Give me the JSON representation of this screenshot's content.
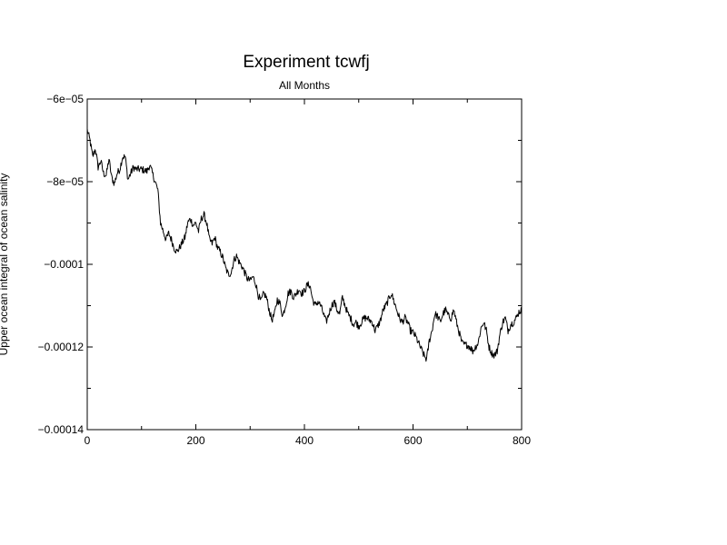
{
  "chart_data": {
    "type": "line",
    "title": "Experiment tcwfj",
    "subtitle": "All Months",
    "xlabel": "",
    "ylabel": "Upper ocean integral of ocean salinity",
    "xlim": [
      0,
      800
    ],
    "ylim": [
      -0.00014,
      -6e-05
    ],
    "xticks": [
      0,
      200,
      400,
      600,
      800
    ],
    "xtick_labels": [
      "0",
      "200",
      "400",
      "600",
      "800"
    ],
    "yticks": [
      -0.00014,
      -0.00012,
      -0.0001,
      -8e-05,
      -6e-05
    ],
    "ytick_labels": [
      "−0.00014",
      "−0.00012",
      "−0.0001",
      "−8e−05",
      "−6e−05"
    ],
    "grid": false,
    "line_color": "#000000",
    "anchors": [
      [
        0,
        -6.75e-05
      ],
      [
        5,
        -7e-05
      ],
      [
        10,
        -7.4e-05
      ],
      [
        15,
        -7.2e-05
      ],
      [
        20,
        -7.65e-05
      ],
      [
        25,
        -7.5e-05
      ],
      [
        30,
        -7.8e-05
      ],
      [
        35,
        -7.85e-05
      ],
      [
        40,
        -7.45e-05
      ],
      [
        45,
        -7.9e-05
      ],
      [
        50,
        -8.05e-05
      ],
      [
        55,
        -7.8e-05
      ],
      [
        60,
        -7.7e-05
      ],
      [
        65,
        -7.4e-05
      ],
      [
        70,
        -7.4e-05
      ],
      [
        75,
        -7.95e-05
      ],
      [
        80,
        -7.8e-05
      ],
      [
        85,
        -7.65e-05
      ],
      [
        90,
        -7.7e-05
      ],
      [
        100,
        -7.7e-05
      ],
      [
        110,
        -7.75e-05
      ],
      [
        115,
        -7.6e-05
      ],
      [
        120,
        -7.8e-05
      ],
      [
        125,
        -8e-05
      ],
      [
        130,
        -8.2e-05
      ],
      [
        135,
        -9e-05
      ],
      [
        140,
        -9.2e-05
      ],
      [
        145,
        -9.4e-05
      ],
      [
        150,
        -9.25e-05
      ],
      [
        155,
        -9.4e-05
      ],
      [
        160,
        -9.6e-05
      ],
      [
        165,
        -9.7e-05
      ],
      [
        170,
        -9.6e-05
      ],
      [
        180,
        -9.35e-05
      ],
      [
        185,
        -9e-05
      ],
      [
        190,
        -8.9e-05
      ],
      [
        195,
        -9.05e-05
      ],
      [
        200,
        -9e-05
      ],
      [
        205,
        -9.2e-05
      ],
      [
        210,
        -8.9e-05
      ],
      [
        215,
        -8.8e-05
      ],
      [
        220,
        -9e-05
      ],
      [
        225,
        -9.4e-05
      ],
      [
        230,
        -9.5e-05
      ],
      [
        235,
        -9.35e-05
      ],
      [
        240,
        -9.6e-05
      ],
      [
        245,
        -9.7e-05
      ],
      [
        250,
        -9.85e-05
      ],
      [
        255,
        -0.000101
      ],
      [
        260,
        -0.0001025
      ],
      [
        265,
        -0.000102
      ],
      [
        270,
        -9.9e-05
      ],
      [
        275,
        -9.8e-05
      ],
      [
        280,
        -9.95e-05
      ],
      [
        285,
        -0.0001005
      ],
      [
        290,
        -0.000102
      ],
      [
        295,
        -0.0001035
      ],
      [
        300,
        -0.000104
      ],
      [
        305,
        -0.000103
      ],
      [
        310,
        -0.0001045
      ],
      [
        315,
        -0.0001075
      ],
      [
        320,
        -0.000109
      ],
      [
        325,
        -0.000107
      ],
      [
        330,
        -0.000108
      ],
      [
        335,
        -0.000111
      ],
      [
        340,
        -0.0001135
      ],
      [
        345,
        -0.000112
      ],
      [
        350,
        -0.0001085
      ],
      [
        355,
        -0.0001095
      ],
      [
        360,
        -0.0001125
      ],
      [
        365,
        -0.00011
      ],
      [
        370,
        -0.000107
      ],
      [
        375,
        -0.0001065
      ],
      [
        380,
        -0.000108
      ],
      [
        385,
        -0.000107
      ],
      [
        390,
        -0.000106
      ],
      [
        395,
        -0.000107
      ],
      [
        400,
        -0.0001065
      ],
      [
        405,
        -0.000105
      ],
      [
        410,
        -0.000105
      ],
      [
        415,
        -0.0001085
      ],
      [
        420,
        -0.00011
      ],
      [
        425,
        -0.000109
      ],
      [
        430,
        -0.00011
      ],
      [
        435,
        -0.000112
      ],
      [
        440,
        -0.000114
      ],
      [
        445,
        -0.000112
      ],
      [
        450,
        -0.00011
      ],
      [
        455,
        -0.000109
      ],
      [
        460,
        -0.000111
      ],
      [
        465,
        -0.000112
      ],
      [
        470,
        -0.000108
      ],
      [
        475,
        -0.00011
      ],
      [
        480,
        -0.000112
      ],
      [
        485,
        -0.000113
      ],
      [
        490,
        -0.0001145
      ],
      [
        495,
        -0.000114
      ],
      [
        500,
        -0.000115
      ],
      [
        505,
        -0.000114
      ],
      [
        510,
        -0.000113
      ],
      [
        515,
        -0.000113
      ],
      [
        520,
        -0.0001135
      ],
      [
        525,
        -0.000114
      ],
      [
        530,
        -0.000116
      ],
      [
        535,
        -0.000115
      ],
      [
        540,
        -0.0001135
      ],
      [
        545,
        -0.000111
      ],
      [
        550,
        -0.00011
      ],
      [
        555,
        -0.0001085
      ],
      [
        560,
        -0.000107
      ],
      [
        565,
        -0.000109
      ],
      [
        570,
        -0.000111
      ],
      [
        575,
        -0.000113
      ],
      [
        580,
        -0.000114
      ],
      [
        585,
        -0.000113
      ],
      [
        590,
        -0.000114
      ],
      [
        595,
        -0.000116
      ],
      [
        600,
        -0.0001165
      ],
      [
        605,
        -0.0001175
      ],
      [
        610,
        -0.000119
      ],
      [
        615,
        -0.0001205
      ],
      [
        620,
        -0.000122
      ],
      [
        625,
        -0.000123
      ],
      [
        630,
        -0.0001185
      ],
      [
        635,
        -0.000116
      ],
      [
        640,
        -0.000112
      ],
      [
        645,
        -0.0001125
      ],
      [
        650,
        -0.000114
      ],
      [
        655,
        -0.000112
      ],
      [
        660,
        -0.000111
      ],
      [
        665,
        -0.0001125
      ],
      [
        670,
        -0.000113
      ],
      [
        675,
        -0.000111
      ],
      [
        680,
        -0.000114
      ],
      [
        685,
        -0.0001165
      ],
      [
        690,
        -0.000119
      ],
      [
        695,
        -0.0001195
      ],
      [
        700,
        -0.0001195
      ],
      [
        705,
        -0.00012
      ],
      [
        710,
        -0.000121
      ],
      [
        715,
        -0.00012
      ],
      [
        720,
        -0.000119
      ],
      [
        725,
        -0.0001155
      ],
      [
        730,
        -0.000114
      ],
      [
        735,
        -0.000116
      ],
      [
        740,
        -0.00012
      ],
      [
        745,
        -0.0001215
      ],
      [
        750,
        -0.000122
      ],
      [
        755,
        -0.000121
      ],
      [
        760,
        -0.000117
      ],
      [
        765,
        -0.000114
      ],
      [
        770,
        -0.000113
      ],
      [
        775,
        -0.000116
      ],
      [
        780,
        -0.0001145
      ],
      [
        785,
        -0.000114
      ],
      [
        790,
        -0.000113
      ],
      [
        795,
        -0.0001115
      ],
      [
        800,
        -0.000111
      ]
    ]
  }
}
